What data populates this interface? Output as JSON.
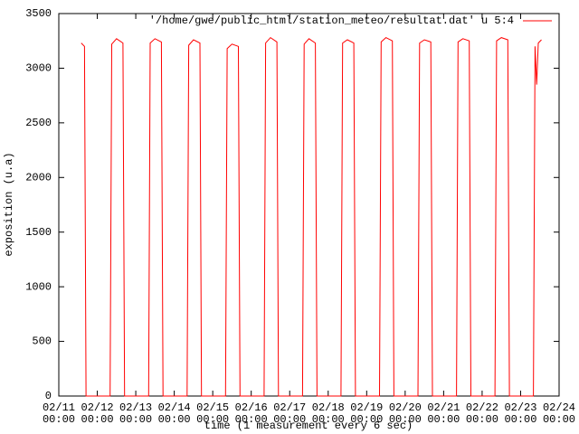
{
  "chart_data": {
    "type": "line",
    "xlabel": "time (1 measurement every 6 sec)",
    "ylabel": "exposition (u.a)",
    "series": [
      {
        "name": "'/home/gwe/public_html/station_meteo/resultat.dat' u 5:4",
        "color": "#ff0000",
        "x": [
          "02/11 14:00",
          "02/11 16:00",
          "02/11 17:00",
          "02/12 08:00",
          "02/12 09:00",
          "02/12 12:00",
          "02/12 16:00",
          "02/12 17:00",
          "02/13 08:00",
          "02/13 09:00",
          "02/13 12:00",
          "02/13 16:00",
          "02/13 17:00",
          "02/14 08:00",
          "02/14 09:00",
          "02/14 12:00",
          "02/14 16:00",
          "02/14 17:00",
          "02/15 08:00",
          "02/15 09:00",
          "02/15 12:00",
          "02/15 16:00",
          "02/15 17:00",
          "02/16 08:00",
          "02/16 09:00",
          "02/16 12:00",
          "02/16 16:00",
          "02/16 17:00",
          "02/17 08:00",
          "02/17 09:00",
          "02/17 12:00",
          "02/17 16:00",
          "02/17 17:00",
          "02/18 08:00",
          "02/18 09:00",
          "02/18 12:00",
          "02/18 16:00",
          "02/18 17:00",
          "02/19 08:00",
          "02/19 09:00",
          "02/19 12:00",
          "02/19 16:00",
          "02/19 17:00",
          "02/20 08:00",
          "02/20 09:00",
          "02/20 12:00",
          "02/20 16:00",
          "02/20 17:00",
          "02/21 08:00",
          "02/21 09:00",
          "02/21 12:00",
          "02/21 16:00",
          "02/21 17:00",
          "02/22 08:00",
          "02/22 09:00",
          "02/22 12:00",
          "02/22 16:00",
          "02/22 17:00",
          "02/23 08:00",
          "02/23 09:00",
          "02/23 10:00",
          "02/23 11:00",
          "02/23 13:00"
        ],
        "values": [
          3230,
          3200,
          0,
          0,
          3220,
          3270,
          3230,
          0,
          0,
          3230,
          3270,
          3240,
          0,
          0,
          3210,
          3260,
          3230,
          0,
          0,
          3180,
          3220,
          3200,
          0,
          0,
          3230,
          3280,
          3240,
          0,
          0,
          3220,
          3270,
          3230,
          0,
          0,
          3230,
          3260,
          3230,
          0,
          0,
          3240,
          3280,
          3250,
          0,
          0,
          3230,
          3260,
          3240,
          0,
          0,
          3240,
          3270,
          3250,
          0,
          0,
          3250,
          3280,
          3260,
          0,
          0,
          3200,
          2850,
          3230,
          3260
        ]
      }
    ],
    "xlim": [
      "02/11 00:00",
      "02/24 00:00"
    ],
    "xticks": [
      "02/11 00:00",
      "02/12 00:00",
      "02/13 00:00",
      "02/14 00:00",
      "02/15 00:00",
      "02/16 00:00",
      "02/17 00:00",
      "02/18 00:00",
      "02/19 00:00",
      "02/20 00:00",
      "02/21 00:00",
      "02/22 00:00",
      "02/23 00:00",
      "02/24 00:00"
    ],
    "ylim": [
      0,
      3500
    ],
    "yticks": [
      0,
      500,
      1000,
      1500,
      2000,
      2500,
      3000,
      3500
    ]
  }
}
